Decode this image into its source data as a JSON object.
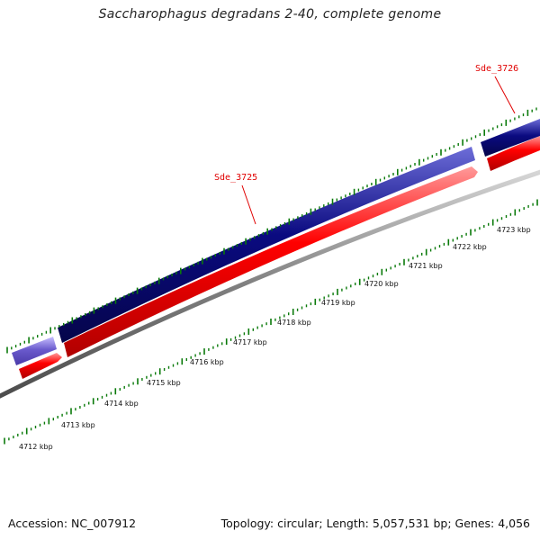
{
  "title": "Saccharophagus degradans 2-40, complete genome",
  "footer": {
    "accession": "Accession: NC_007912",
    "summary": "Topology: circular; Length: 5,057,531 bp; Genes: 4,056"
  },
  "colors": {
    "forward_gene": "#0a0a80",
    "forward_gene_partial": "#6a5acd",
    "reverse_gene": "#ff0000",
    "backbone": "#808080",
    "tick": "#0a7a0a",
    "gene_label": "#e00000"
  },
  "gene_labels": [
    {
      "name": "Sde_3725"
    },
    {
      "name": "Sde_3726"
    }
  ],
  "scale_labels": [
    "4712 kbp",
    "4713 kbp",
    "4714 kbp",
    "4715 kbp",
    "4716 kbp",
    "4717 kbp",
    "4718 kbp",
    "4719 kbp",
    "4720 kbp",
    "4721 kbp",
    "4722 kbp",
    "4723 kbp"
  ]
}
